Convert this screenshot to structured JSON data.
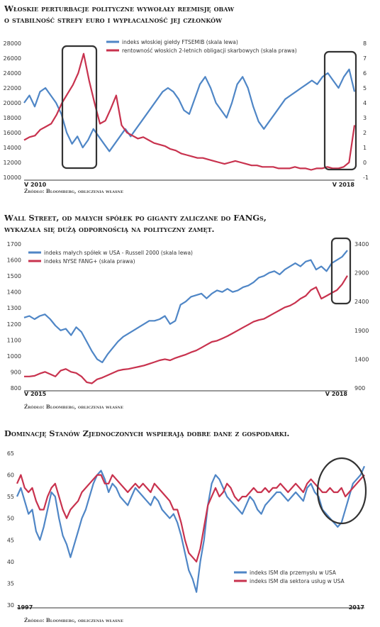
{
  "charts": [
    {
      "title_lines": [
        "Włoskie perturbacje polityczne wywołały reemisję obaw",
        "o stabilność strefy euro i wypłacalność jej członków"
      ],
      "source": "Źródło: Bloomberg, obliczenia własne",
      "start_label": "V 2010",
      "end_label": "V 2018"
    },
    {
      "title_lines": [
        "Wall Street, od małych spółek po giganty zaliczane do FANGs,",
        "wykazała się dużą odpornością na polityczny zamęt."
      ],
      "source": "Źródło: Bloomberg, obliczenia własne",
      "start_label": "V 2015",
      "end_label": "V 2018"
    },
    {
      "title_lines": [
        "Dominację Stanów Zjednoczonych wspierają dobre dane z gospodarki."
      ],
      "source": "Źródło: Bloomberg, obliczenia własne",
      "start_label": "1997",
      "end_label": "2017"
    }
  ],
  "colors": {
    "blue": "#4f86c6",
    "red": "#c8324e",
    "axis": "#333333"
  },
  "chart_data": [
    {
      "type": "line",
      "x_range": [
        "2010-05",
        "2018-05"
      ],
      "ylim_left": [
        10000,
        28000
      ],
      "yticks_left": [
        "28000",
        "26000",
        "24000",
        "22000",
        "20000",
        "18000",
        "16000",
        "14000",
        "12000",
        "10000"
      ],
      "ylim_right": [
        -1,
        8
      ],
      "yticks_right": [
        "8",
        "7",
        "6",
        "5",
        "4",
        "3",
        "2",
        "1",
        "0",
        "-1"
      ],
      "series": [
        {
          "name": "indeks włoskiej giełdy FTSEMIB (skala lewa)",
          "axis": "left",
          "color": "#4f86c6",
          "values": [
            20000,
            21000,
            19500,
            21500,
            22000,
            21000,
            20000,
            18500,
            16000,
            14500,
            15500,
            14000,
            15000,
            16500,
            15500,
            14500,
            13500,
            14500,
            15500,
            16500,
            15500,
            16500,
            17500,
            18500,
            19500,
            20500,
            21500,
            22000,
            21500,
            20500,
            19000,
            18500,
            20500,
            22500,
            23500,
            22000,
            20000,
            19000,
            18000,
            20000,
            22500,
            23500,
            22000,
            19500,
            17500,
            16500,
            17500,
            18500,
            19500,
            20500,
            21000,
            21500,
            22000,
            22500,
            23000,
            22500,
            23500,
            24000,
            23000,
            22000,
            23500,
            24500,
            21500
          ]
        },
        {
          "name": "rentowność włoskich 2-letnich obligacji skarbowych (skala prawa)",
          "axis": "right",
          "color": "#c8324e",
          "values": [
            1.5,
            1.7,
            1.8,
            2.2,
            2.4,
            2.6,
            3.2,
            4.0,
            4.6,
            5.2,
            6.0,
            7.3,
            5.5,
            4.0,
            2.6,
            2.8,
            3.6,
            4.5,
            2.5,
            2.0,
            1.8,
            1.6,
            1.7,
            1.5,
            1.3,
            1.2,
            1.1,
            0.9,
            0.8,
            0.6,
            0.5,
            0.4,
            0.3,
            0.3,
            0.2,
            0.1,
            0.0,
            -0.1,
            0.0,
            0.1,
            0.0,
            -0.1,
            -0.2,
            -0.2,
            -0.3,
            -0.3,
            -0.3,
            -0.4,
            -0.4,
            -0.4,
            -0.3,
            -0.4,
            -0.4,
            -0.5,
            -0.4,
            -0.4,
            -0.3,
            -0.4,
            -0.4,
            -0.3,
            0.0,
            2.5
          ]
        }
      ],
      "xlabel": "",
      "ylabel": "",
      "grid": false,
      "legend": "top-left"
    },
    {
      "type": "line",
      "x_range": [
        "2015-05",
        "2018-05"
      ],
      "ylim_left": [
        800,
        1700
      ],
      "yticks_left": [
        "1700",
        "1600",
        "1500",
        "1400",
        "1300",
        "1200",
        "1100",
        "1000",
        "900",
        "800"
      ],
      "ylim_right": [
        900,
        3400
      ],
      "yticks_right": [
        "3400",
        "2900",
        "2400",
        "1900",
        "1400",
        "900"
      ],
      "series": [
        {
          "name": "indeks małych spółek w USA - Russell 2000 (skala lewa)",
          "axis": "left",
          "color": "#4f86c6",
          "values": [
            1240,
            1250,
            1230,
            1250,
            1260,
            1230,
            1190,
            1160,
            1170,
            1130,
            1180,
            1150,
            1090,
            1030,
            980,
            960,
            1010,
            1050,
            1090,
            1120,
            1140,
            1160,
            1180,
            1200,
            1220,
            1220,
            1230,
            1250,
            1200,
            1220,
            1320,
            1340,
            1370,
            1380,
            1390,
            1360,
            1390,
            1410,
            1400,
            1420,
            1400,
            1410,
            1430,
            1440,
            1460,
            1490,
            1500,
            1520,
            1530,
            1510,
            1540,
            1560,
            1580,
            1560,
            1590,
            1600,
            1540,
            1560,
            1530,
            1580,
            1600,
            1620,
            1660
          ]
        },
        {
          "name": "indeks NYSE FANG+ (skala prawa)",
          "axis": "right",
          "color": "#c8324e",
          "values": [
            1100,
            1100,
            1110,
            1150,
            1180,
            1140,
            1100,
            1200,
            1230,
            1180,
            1160,
            1100,
            1000,
            980,
            1050,
            1080,
            1120,
            1160,
            1200,
            1220,
            1230,
            1250,
            1270,
            1290,
            1320,
            1350,
            1380,
            1400,
            1380,
            1420,
            1450,
            1480,
            1520,
            1550,
            1600,
            1650,
            1700,
            1720,
            1760,
            1800,
            1850,
            1900,
            1950,
            2000,
            2050,
            2080,
            2100,
            2150,
            2200,
            2250,
            2300,
            2330,
            2380,
            2450,
            2500,
            2600,
            2650,
            2450,
            2500,
            2550,
            2600,
            2700,
            2850
          ]
        }
      ],
      "xlabel": "",
      "ylabel": "",
      "grid": false,
      "legend": "top-left"
    },
    {
      "type": "line",
      "x_range": [
        1997,
        2018
      ],
      "ylim": [
        30,
        65
      ],
      "yticks": [
        "65",
        "60",
        "55",
        "50",
        "45",
        "40",
        "35",
        "30"
      ],
      "series": [
        {
          "name": "indeks ISM dla przemysłu w USA",
          "color": "#4f86c6",
          "values": [
            55,
            57,
            54,
            51,
            52,
            47,
            45,
            48,
            52,
            56,
            55,
            50,
            46,
            44,
            41,
            44,
            47,
            50,
            52,
            55,
            58,
            60,
            61,
            59,
            56,
            58,
            57,
            55,
            54,
            53,
            55,
            57,
            56,
            55,
            54,
            53,
            55,
            54,
            52,
            51,
            50,
            51,
            49,
            46,
            42,
            38,
            36,
            33,
            40,
            45,
            53,
            58,
            60,
            59,
            57,
            55,
            54,
            53,
            52,
            51,
            53,
            55,
            54,
            52,
            51,
            53,
            54,
            55,
            56,
            56,
            55,
            54,
            55,
            56,
            55,
            54,
            57,
            58,
            56,
            55,
            52,
            51,
            50,
            49,
            48,
            49,
            52,
            55,
            58,
            59,
            60,
            62
          ]
        },
        {
          "name": "indeks ISM dla sektora usług w USA",
          "color": "#c8324e",
          "values": [
            58,
            60,
            57,
            56,
            57,
            54,
            52,
            52,
            55,
            57,
            58,
            55,
            52,
            50,
            52,
            53,
            54,
            56,
            57,
            58,
            59,
            60,
            60,
            58,
            58,
            60,
            59,
            58,
            57,
            56,
            57,
            58,
            57,
            58,
            57,
            56,
            58,
            57,
            56,
            55,
            54,
            52,
            52,
            49,
            45,
            42,
            41,
            40,
            43,
            48,
            53,
            55,
            57,
            55,
            56,
            58,
            57,
            55,
            54,
            55,
            55,
            56,
            57,
            56,
            56,
            57,
            56,
            57,
            57,
            58,
            57,
            56,
            57,
            58,
            57,
            56,
            58,
            59,
            58,
            57,
            56,
            56,
            57,
            56,
            56,
            57,
            55,
            56,
            57,
            58,
            59,
            60
          ]
        }
      ],
      "xlabel": "",
      "ylabel": "",
      "grid": false,
      "legend": "bottom-right"
    }
  ]
}
